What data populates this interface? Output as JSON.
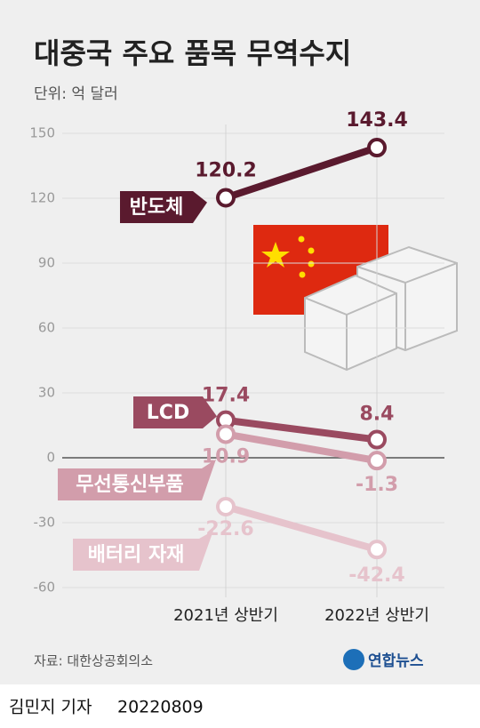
{
  "chart_data": {
    "type": "line",
    "title": "대중국 주요 품목 무역수지",
    "unit": "단위: 억 달러",
    "categories": [
      "2021년 상반기",
      "2022년 상반기"
    ],
    "series": [
      {
        "name": "반도체",
        "color": "#5a1a2e",
        "values": [
          120.2,
          143.4
        ]
      },
      {
        "name": "LCD",
        "color": "#9a4a60",
        "values": [
          17.4,
          8.4
        ]
      },
      {
        "name": "무선통신부품",
        "color": "#d29dab",
        "values": [
          10.9,
          -1.3
        ]
      },
      {
        "name": "배터리 자재",
        "color": "#e6c3cc",
        "values": [
          -22.6,
          -42.4
        ]
      }
    ],
    "ylim": [
      -60,
      150
    ],
    "yticks": [
      -60,
      -30,
      0,
      30,
      60,
      90,
      120,
      150
    ],
    "grid": true,
    "source": "자료: 대한상공회의소",
    "logo": "연합뉴스",
    "reporter": "김민지 기자",
    "date": "20220809"
  }
}
